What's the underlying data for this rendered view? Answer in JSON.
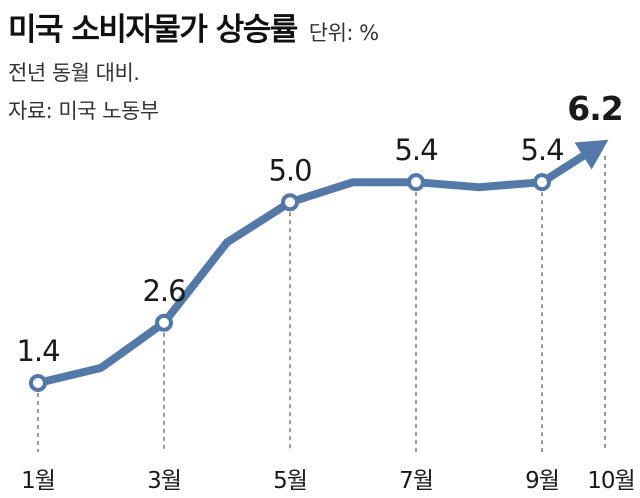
{
  "title": "미국 소비자물가 상승률",
  "unit": "단위: %",
  "subtitle": "전년 동월 대비.",
  "source": "자료: 미국 노동부",
  "chart_data": {
    "type": "line",
    "title": "미국 소비자물가 상승률",
    "unit": "%",
    "x": [
      "1월",
      "2월",
      "3월",
      "4월",
      "5월",
      "6월",
      "7월",
      "8월",
      "9월",
      "10월"
    ],
    "values": [
      1.4,
      1.7,
      2.6,
      4.2,
      5.0,
      5.4,
      5.4,
      5.3,
      5.4,
      6.2
    ],
    "labeled_points": [
      {
        "x": "1월",
        "label": "1.4"
      },
      {
        "x": "3월",
        "label": "2.6"
      },
      {
        "x": "5월",
        "label": "5.0"
      },
      {
        "x": "7월",
        "label": "5.4"
      },
      {
        "x": "9월",
        "label": "5.4"
      },
      {
        "x": "10월",
        "label": "6.2"
      }
    ],
    "tick_labels": [
      "1월",
      "3월",
      "5월",
      "7월",
      "9월",
      "10월"
    ],
    "line_color": "#5479a8",
    "grid": false,
    "legend": "none",
    "last_point_marker": "arrow"
  }
}
